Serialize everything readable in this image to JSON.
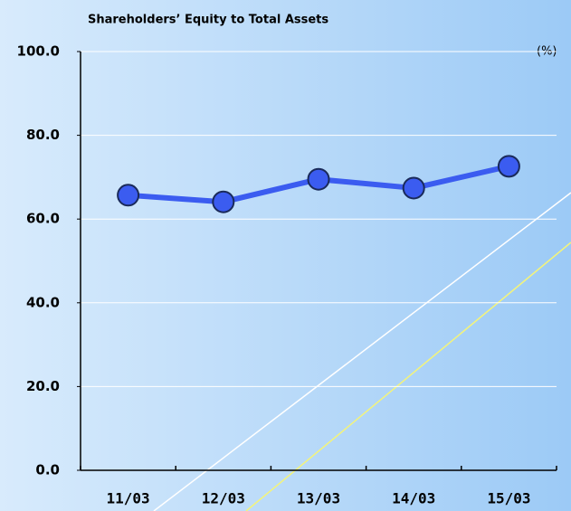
{
  "chart_data": {
    "type": "line",
    "title": "Shareholders’ Equity to Total Assets",
    "unit_label": "(%)",
    "categories": [
      "11/03",
      "12/03",
      "13/03",
      "14/03",
      "15/03"
    ],
    "series": [
      {
        "name": "Shareholders’ Equity to Total Assets",
        "color": "#3b5cf0",
        "values": [
          65.7,
          64.1,
          69.5,
          67.4,
          72.6
        ]
      }
    ],
    "ylim": [
      0,
      100
    ],
    "yticks": [
      {
        "value": 0,
        "label": "0.0"
      },
      {
        "value": 20,
        "label": "20.0"
      },
      {
        "value": 40,
        "label": "40.0"
      },
      {
        "value": 60,
        "label": "60.0"
      },
      {
        "value": 80,
        "label": "80.0"
      },
      {
        "value": 100,
        "label": "100.0"
      }
    ],
    "grid": true
  }
}
